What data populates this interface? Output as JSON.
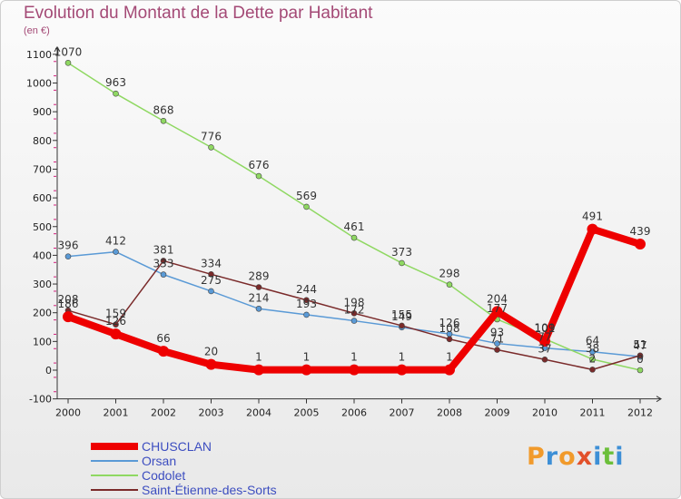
{
  "chart_data": {
    "type": "line",
    "title": "Evolution du Montant de la Dette par Habitant",
    "subtitle": "(en €)",
    "xlabel": "",
    "ylabel": "",
    "x": [
      "2000",
      "2001",
      "2002",
      "2003",
      "2004",
      "2005",
      "2006",
      "2007",
      "2008",
      "2009",
      "2010",
      "2011",
      "2012"
    ],
    "ylim": [
      -100,
      1100
    ],
    "yticks": [
      -100,
      0,
      100,
      200,
      300,
      400,
      500,
      600,
      700,
      800,
      900,
      1000,
      1100
    ],
    "grid": false,
    "legend": "bottom-left",
    "series": [
      {
        "name": "Orsan",
        "color": "#5a9ad6",
        "values": [
          396,
          412,
          333,
          275,
          214,
          193,
          172,
          149,
          126,
          93,
          77,
          64,
          47
        ]
      },
      {
        "name": "Codolet",
        "color": "#8fd862",
        "values": [
          1070,
          963,
          868,
          776,
          676,
          569,
          461,
          373,
          298,
          177,
          109,
          38,
          0
        ]
      },
      {
        "name": "Saint-Étienne-des-Sorts",
        "color": "#7a2a2a",
        "values": [
          208,
          159,
          381,
          334,
          289,
          244,
          198,
          155,
          108,
          71,
          37,
          2,
          51
        ]
      },
      {
        "name": "CHUSCLAN",
        "color": "#ee0000",
        "values": [
          186,
          126,
          66,
          20,
          1,
          1,
          1,
          1,
          1,
          204,
          101,
          491,
          439
        ]
      }
    ]
  },
  "logo": {
    "letters": [
      "P",
      "r",
      "o",
      "x",
      "i",
      "t",
      "i"
    ],
    "colors": [
      "#f19a2b",
      "#3d8fd6",
      "#f19a2b",
      "#e2502a",
      "#3d8fd6",
      "#6cbf3a",
      "#3d8fd6"
    ]
  }
}
